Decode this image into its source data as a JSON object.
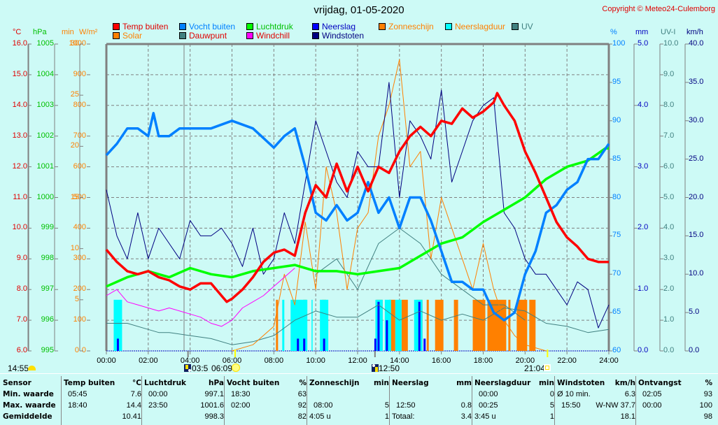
{
  "header": {
    "title": "vrijdag, 01-05-2020",
    "copyright": "Copyright © Meteo24-Culemborg"
  },
  "legend": [
    {
      "label": "Temp buiten",
      "color": "#ff0000",
      "text_color": "#e00000"
    },
    {
      "label": "Solar",
      "color": "#ff8000",
      "text_color": "#ff8000"
    },
    {
      "label": "Vocht buiten",
      "color": "#0080ff",
      "text_color": "#0080ff"
    },
    {
      "label": "Dauwpunt",
      "color": "#408080",
      "text_color": "#e00000"
    },
    {
      "label": "Luchtdruk",
      "color": "#00ff00",
      "text_color": "#00c000"
    },
    {
      "label": "Windchill",
      "color": "#ff00ff",
      "text_color": "#e00000"
    },
    {
      "label": "Neerslag",
      "color": "#0000ff",
      "text_color": "#0000c0"
    },
    {
      "label": "Windstoten",
      "color": "#000080",
      "text_color": "#000080"
    },
    {
      "label": "Zonneschijn",
      "color": "#ff8000",
      "text_color": "#ff8000"
    },
    {
      "label": "Neerslagduur",
      "color": "#00ffff",
      "text_color": "#ff8000"
    },
    {
      "label": "UV",
      "color": "#408080",
      "text_color": "#408080"
    }
  ],
  "axes_left": [
    {
      "unit": "°C",
      "color": "#e00000",
      "ticks": [
        "16.0",
        "15.0",
        "14.0",
        "13.0",
        "12.0",
        "11.0",
        "10.0",
        "9.0",
        "8.0",
        "7.0",
        "6.0"
      ]
    },
    {
      "unit": "hPa",
      "color": "#00c000",
      "ticks": [
        "1005",
        "1004",
        "1003",
        "1002",
        "1001",
        "1000",
        "999",
        "998",
        "997",
        "996",
        "995"
      ]
    },
    {
      "unit": "min",
      "color": "#ff8000",
      "ticks": [
        "30",
        "25",
        "20",
        "15",
        "10",
        "5",
        "0"
      ]
    },
    {
      "unit": "W/m²",
      "color": "#ff8000",
      "ticks": [
        "1000",
        "900",
        "800",
        "700",
        "600",
        "500",
        "400",
        "300",
        "200",
        "100",
        "0"
      ]
    }
  ],
  "axes_right": [
    {
      "unit": "%",
      "color": "#0080ff",
      "ticks": [
        "100",
        "95",
        "90",
        "85",
        "80",
        "75",
        "70",
        "65",
        "60"
      ]
    },
    {
      "unit": "mm",
      "color": "#0000c0",
      "ticks": [
        "5.0",
        "4.0",
        "3.0",
        "2.0",
        "1.0",
        "0.0"
      ]
    },
    {
      "unit": "UV-I",
      "color": "#408080",
      "ticks": [
        "10.0",
        "9.0",
        "8.0",
        "7.0",
        "6.0",
        "5.0",
        "4.0",
        "3.0",
        "2.0",
        "1.0",
        "0.0"
      ]
    },
    {
      "unit": "km/h",
      "color": "#000080",
      "ticks": [
        "40.0",
        "35.0",
        "30.0",
        "25.0",
        "20.0",
        "15.0",
        "10.0",
        "5.0",
        "0.0"
      ]
    }
  ],
  "sun_row": {
    "moonset_time": "14:55",
    "sunrise_mark": "03:5",
    "sunrise_time": "06:09",
    "moonrise_time": "12:50",
    "sunset_time": "21:04"
  },
  "chart_data": {
    "type": "line",
    "title": "vrijdag, 01-05-2020",
    "x_label": "time",
    "x_ticks": [
      "00:00",
      "02:00",
      "04:00",
      "06:00",
      "08:00",
      "10:00",
      "12:00",
      "14:00",
      "16:00",
      "18:00",
      "20:00",
      "22:00",
      "24:00"
    ],
    "x_range_hours": [
      0,
      24
    ],
    "grid": true,
    "series": [
      {
        "name": "Temp buiten",
        "unit": "°C",
        "ylim": [
          6,
          16
        ],
        "color": "#ff0000",
        "x": [
          0,
          0.5,
          1,
          1.5,
          2,
          2.5,
          3,
          3.5,
          4,
          4.5,
          5,
          5.5,
          5.75,
          6,
          6.5,
          7,
          7.5,
          8,
          8.5,
          9,
          9.5,
          10,
          10.5,
          11,
          11.5,
          12,
          12.5,
          13,
          13.5,
          14,
          14.5,
          15,
          15.5,
          16,
          16.5,
          17,
          17.5,
          18,
          18.5,
          18.67,
          19,
          19.5,
          20,
          20.5,
          21,
          21.5,
          22,
          22.5,
          23,
          23.5,
          24
        ],
        "y": [
          9.3,
          8.9,
          8.6,
          8.5,
          8.6,
          8.4,
          8.3,
          8.1,
          8.0,
          8.2,
          8.2,
          7.8,
          7.6,
          7.7,
          8.0,
          8.4,
          8.9,
          9.2,
          9.3,
          9.1,
          10.5,
          11.4,
          11.0,
          12.1,
          11.2,
          12.0,
          11.2,
          12.0,
          11.8,
          12.5,
          13.0,
          13.3,
          13.0,
          13.5,
          13.4,
          13.9,
          13.6,
          13.8,
          14.1,
          14.4,
          14.0,
          13.5,
          12.5,
          11.8,
          11.0,
          10.2,
          9.7,
          9.4,
          9.0,
          8.9,
          8.9
        ]
      },
      {
        "name": "Luchtdruk",
        "unit": "hPa",
        "ylim": [
          995,
          1005
        ],
        "color": "#00ff00",
        "x": [
          0,
          1,
          2,
          3,
          4,
          5,
          6,
          7,
          8,
          9,
          10,
          11,
          12,
          13,
          14,
          15,
          16,
          17,
          18,
          19,
          20,
          21,
          22,
          23,
          23.83,
          24
        ],
        "y": [
          997.1,
          997.4,
          997.6,
          997.4,
          997.7,
          997.5,
          997.4,
          997.6,
          997.7,
          997.8,
          997.6,
          997.6,
          997.5,
          997.6,
          997.7,
          998.1,
          998.5,
          998.7,
          999.2,
          999.6,
          1000.0,
          1000.6,
          1001.0,
          1001.2,
          1001.6,
          1001.6
        ]
      },
      {
        "name": "Vocht buiten",
        "unit": "%",
        "ylim": [
          60,
          100
        ],
        "color": "#0080ff",
        "x": [
          0,
          0.5,
          1,
          1.5,
          2,
          2.25,
          2.5,
          3,
          3.5,
          4,
          4.5,
          5,
          6,
          7,
          8,
          8.5,
          9,
          9.5,
          10,
          10.5,
          11,
          11.5,
          12,
          12.5,
          13,
          13.5,
          14,
          14.5,
          15,
          15.5,
          16,
          16.5,
          17,
          17.5,
          18,
          18.5,
          19,
          19.5,
          20,
          20.5,
          21,
          21.5,
          22,
          22.5,
          23,
          23.5,
          24
        ],
        "y": [
          85.5,
          87,
          89,
          89,
          88,
          91,
          88,
          88,
          89,
          89,
          89,
          89,
          90,
          89,
          86.5,
          88,
          89,
          84,
          78,
          77,
          79,
          77,
          78,
          82,
          78,
          80,
          76,
          80,
          80,
          77,
          73,
          69,
          69,
          68,
          68,
          65,
          64,
          65,
          70,
          73,
          78,
          79,
          81,
          82,
          85,
          85,
          87
        ]
      },
      {
        "name": "Windstoten",
        "unit": "km/h",
        "ylim": [
          0,
          40
        ],
        "color": "#000080",
        "x": [
          0,
          0.5,
          1,
          1.5,
          2,
          2.5,
          3,
          3.5,
          4,
          4.5,
          5,
          5.5,
          6,
          6.5,
          7,
          7.5,
          8,
          8.5,
          9,
          9.5,
          10,
          10.5,
          11,
          11.5,
          12,
          12.5,
          13,
          13.5,
          14,
          14.5,
          15,
          15.5,
          16,
          16.5,
          17,
          17.5,
          18,
          18.5,
          19,
          19.5,
          20,
          20.5,
          21,
          21.5,
          22,
          22.5,
          23,
          23.5,
          24
        ],
        "y": [
          21,
          15,
          12,
          18,
          12,
          16,
          14,
          12,
          17,
          15,
          15,
          16,
          14,
          11,
          16,
          10,
          12,
          18,
          14,
          22,
          30,
          26,
          22,
          20,
          26,
          24,
          24,
          35,
          20,
          30,
          28,
          25,
          34,
          22,
          26,
          30,
          32,
          33,
          18,
          16,
          12,
          10,
          10,
          8,
          6,
          9,
          8,
          3,
          6
        ]
      },
      {
        "name": "Windchill",
        "unit": "°C",
        "ylim": [
          6,
          16
        ],
        "color": "#ff00ff",
        "x": [
          0,
          0.5,
          1,
          1.5,
          2,
          2.5,
          3,
          3.5,
          4,
          4.5,
          5,
          5.5,
          6,
          6.5,
          7,
          7.5,
          8,
          8.5,
          9
        ],
        "y": [
          7.8,
          8.0,
          7.6,
          7.5,
          7.4,
          7.3,
          7.4,
          7.3,
          7.2,
          7.1,
          6.9,
          6.8,
          7.0,
          7.4,
          7.6,
          7.8,
          8.1,
          8.4,
          8.7
        ]
      },
      {
        "name": "Dauwpunt",
        "unit": "°C",
        "ylim": [
          6,
          16
        ],
        "color": "#408080",
        "x": [
          0,
          1,
          2,
          2.5,
          3,
          4,
          5,
          6,
          7,
          8,
          9,
          10,
          11,
          12,
          13,
          14,
          15,
          16,
          17,
          18,
          19,
          20,
          21,
          22,
          23,
          24
        ],
        "y": [
          6.9,
          6.9,
          6.7,
          6.6,
          6.6,
          6.5,
          6.4,
          6.2,
          6.3,
          6.5,
          7.0,
          7.3,
          7.1,
          7.1,
          7.5,
          7.0,
          7.3,
          7.0,
          7.2,
          7.0,
          7.4,
          7.3,
          6.9,
          6.8,
          6.6,
          6.7
        ]
      },
      {
        "name": "Solar",
        "unit": "W/m²",
        "ylim": [
          0,
          1000
        ],
        "color": "#ff8000",
        "x": [
          6,
          7,
          8,
          8.5,
          9,
          9.5,
          10,
          10.5,
          11,
          11.5,
          12,
          12.5,
          13,
          13.5,
          14,
          14.5,
          15,
          15.5,
          16,
          16.5,
          17,
          17.5,
          18,
          18.5,
          19,
          19.5,
          20,
          20.5,
          21
        ],
        "y": [
          0,
          20,
          80,
          250,
          150,
          420,
          200,
          600,
          450,
          200,
          400,
          450,
          700,
          800,
          950,
          600,
          650,
          300,
          500,
          400,
          300,
          200,
          350,
          200,
          100,
          50,
          20,
          10,
          0
        ]
      },
      {
        "name": "UV",
        "unit": "UV-I",
        "ylim": [
          0,
          10
        ],
        "color": "#408080",
        "x": [
          10,
          11,
          12,
          13,
          14,
          15,
          16,
          17,
          18,
          19,
          20
        ],
        "y": [
          2.5,
          3.0,
          2.0,
          3.5,
          4.0,
          3.5,
          2.5,
          2.0,
          1.5,
          1.5,
          1.0
        ]
      }
    ],
    "bars": [
      {
        "name": "Zonneschijn",
        "unit": "min",
        "ylim": [
          0,
          30
        ],
        "color": "#ff8000",
        "intervals": [
          [
            8.1,
            8.2
          ],
          [
            9.4,
            9.55
          ],
          [
            10.3,
            10.5
          ],
          [
            12.9,
            13.2
          ],
          [
            13.5,
            13.8
          ],
          [
            14.1,
            14.4
          ],
          [
            14.8,
            15.1
          ],
          [
            15.3,
            15.4
          ],
          [
            15.7,
            16.1
          ],
          [
            16.6,
            16.8
          ],
          [
            17.5,
            18.1
          ],
          [
            18.2,
            19.1
          ],
          [
            19.2,
            19.3
          ],
          [
            19.6,
            20.1
          ],
          [
            20.2,
            20.5
          ]
        ],
        "value": 5
      },
      {
        "name": "Neerslagduur",
        "unit": "min",
        "ylim": [
          0,
          30
        ],
        "color": "#00ffff",
        "intervals": [
          [
            0.35,
            0.75
          ],
          [
            8.4,
            8.5
          ],
          [
            8.8,
            9.6
          ],
          [
            9.8,
            9.85
          ],
          [
            10.2,
            10.6
          ],
          [
            12.85,
            13.2
          ],
          [
            13.3,
            13.6
          ],
          [
            13.8,
            14.1
          ],
          [
            14.7,
            15.1
          ]
        ],
        "value": 5
      },
      {
        "name": "Neerslag",
        "unit": "mm",
        "ylim": [
          0,
          5
        ],
        "color": "#0000ff",
        "x": [
          0.55,
          9.15,
          9.45,
          10.4,
          12.85,
          13.0,
          13.4,
          14.95,
          15.2
        ],
        "values": [
          0.2,
          0.2,
          0.2,
          0.2,
          0.2,
          0.8,
          0.5,
          0.8,
          0.2
        ]
      }
    ]
  },
  "stats": {
    "row_labels": [
      "Sensor",
      "Min. waarde",
      "Max. waarde",
      "Gemiddelde"
    ],
    "columns": [
      {
        "title": "Temp buiten",
        "unit": "°C",
        "rows": [
          [
            "05:45",
            "7.6"
          ],
          [
            "18:40",
            "14.4"
          ],
          [
            "",
            "10.41"
          ]
        ]
      },
      {
        "title": "Luchtdruk",
        "unit": "hPa",
        "rows": [
          [
            "00:00",
            "997.1"
          ],
          [
            "23:50",
            "1001.6"
          ],
          [
            "",
            "998.3"
          ]
        ]
      },
      {
        "title": "Vocht buiten",
        "unit": "%",
        "rows": [
          [
            "18:30",
            "63"
          ],
          [
            "02:00",
            "92"
          ],
          [
            "",
            "82"
          ]
        ]
      },
      {
        "title": "Zonneschijn",
        "unit": "min",
        "rows": [
          [
            "",
            ""
          ],
          [
            "08:00",
            "5"
          ],
          [
            "4:05 u",
            "1"
          ]
        ]
      },
      {
        "title": "Neerslag",
        "unit": "mm",
        "rows": [
          [
            "",
            ""
          ],
          [
            "12:50",
            "0.8"
          ],
          [
            "Totaal:",
            "3.4"
          ]
        ]
      },
      {
        "title": "Neerslagduur",
        "unit": "min",
        "rows": [
          [
            "00:00",
            "0"
          ],
          [
            "00:25",
            "5"
          ],
          [
            "3:45 u",
            "1"
          ]
        ]
      },
      {
        "title": "Windstoten",
        "unit": "km/h",
        "rows": [
          [
            "Ø 10 min.",
            "6.3"
          ],
          [
            "15:50",
            "W-NW 37.7"
          ],
          [
            "",
            "18.1"
          ]
        ]
      },
      {
        "title": "Ontvangst",
        "unit": "%",
        "rows": [
          [
            "02:05",
            "93"
          ],
          [
            "00:00",
            "100"
          ],
          [
            "",
            "98"
          ]
        ]
      }
    ]
  }
}
